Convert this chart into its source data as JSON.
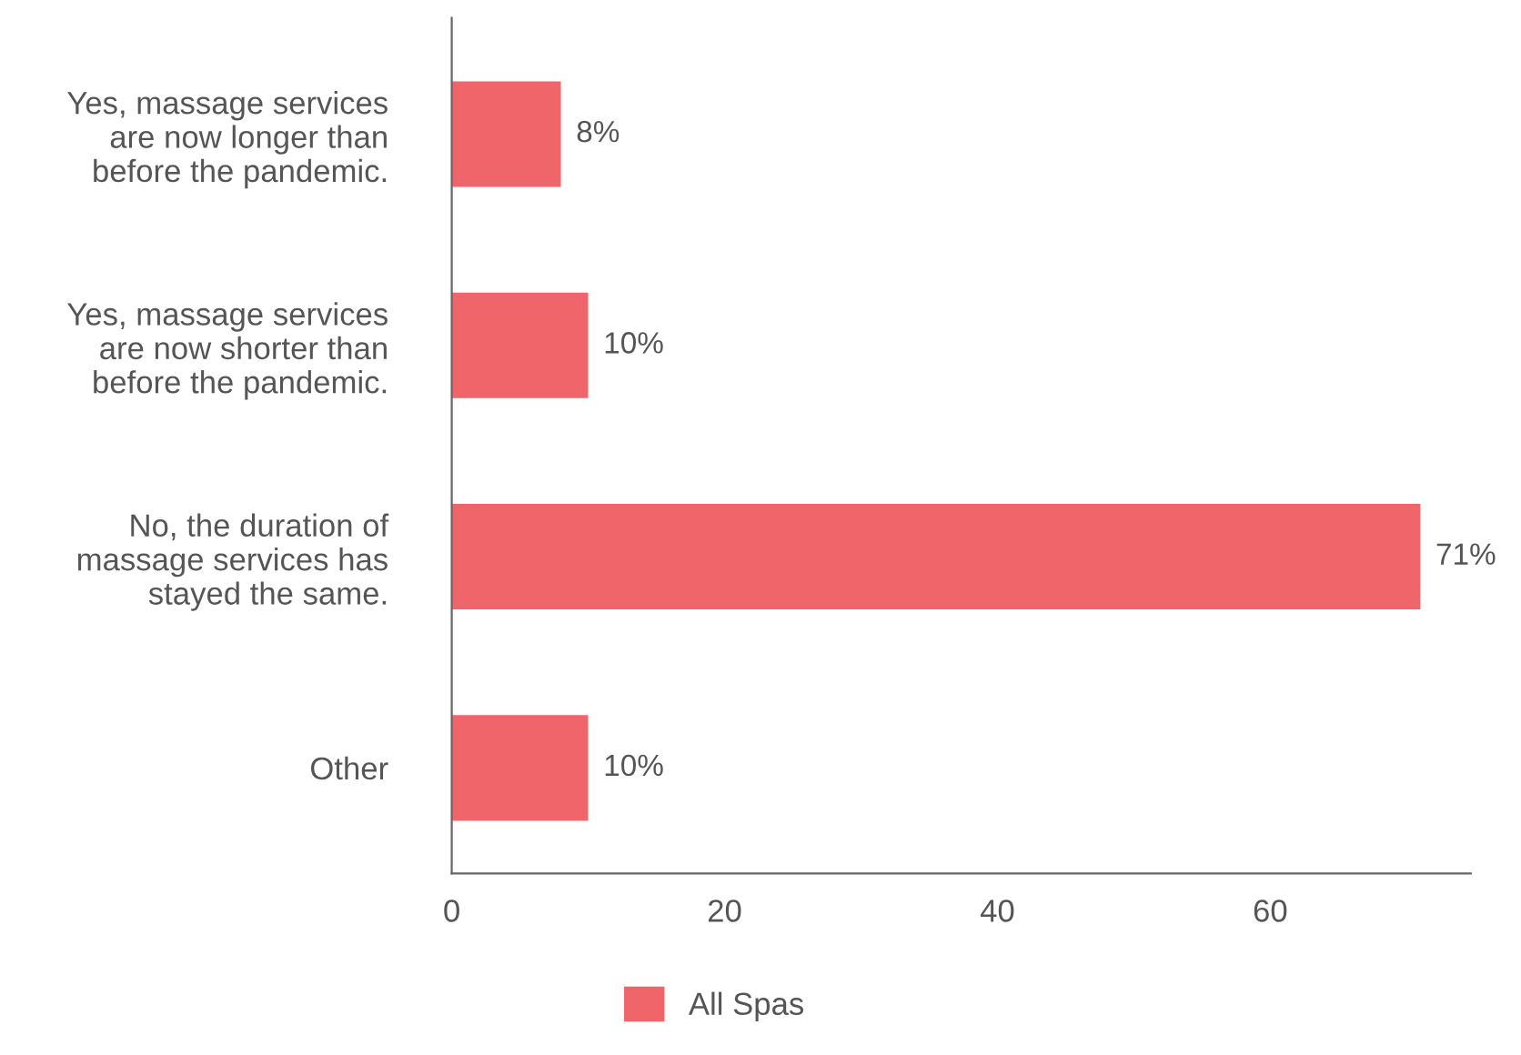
{
  "chart_data": {
    "type": "bar",
    "orientation": "horizontal",
    "categories": [
      "Yes, massage services\nare now longer than\nbefore the pandemic.",
      "Yes, massage services\nare now shorter than\nbefore the pandemic.",
      "No, the duration of\nmassage services has\nstayed the same.",
      "Other"
    ],
    "series": [
      {
        "name": "All Spas",
        "color": "#f0656a",
        "values": [
          8,
          10,
          71,
          10
        ],
        "value_labels": [
          "8%",
          "10%",
          "71%",
          "10%"
        ]
      }
    ],
    "xlim": [
      0,
      74.7
    ],
    "xticks": [
      0,
      20,
      40,
      60
    ],
    "grid": false,
    "legend": "bottom"
  }
}
